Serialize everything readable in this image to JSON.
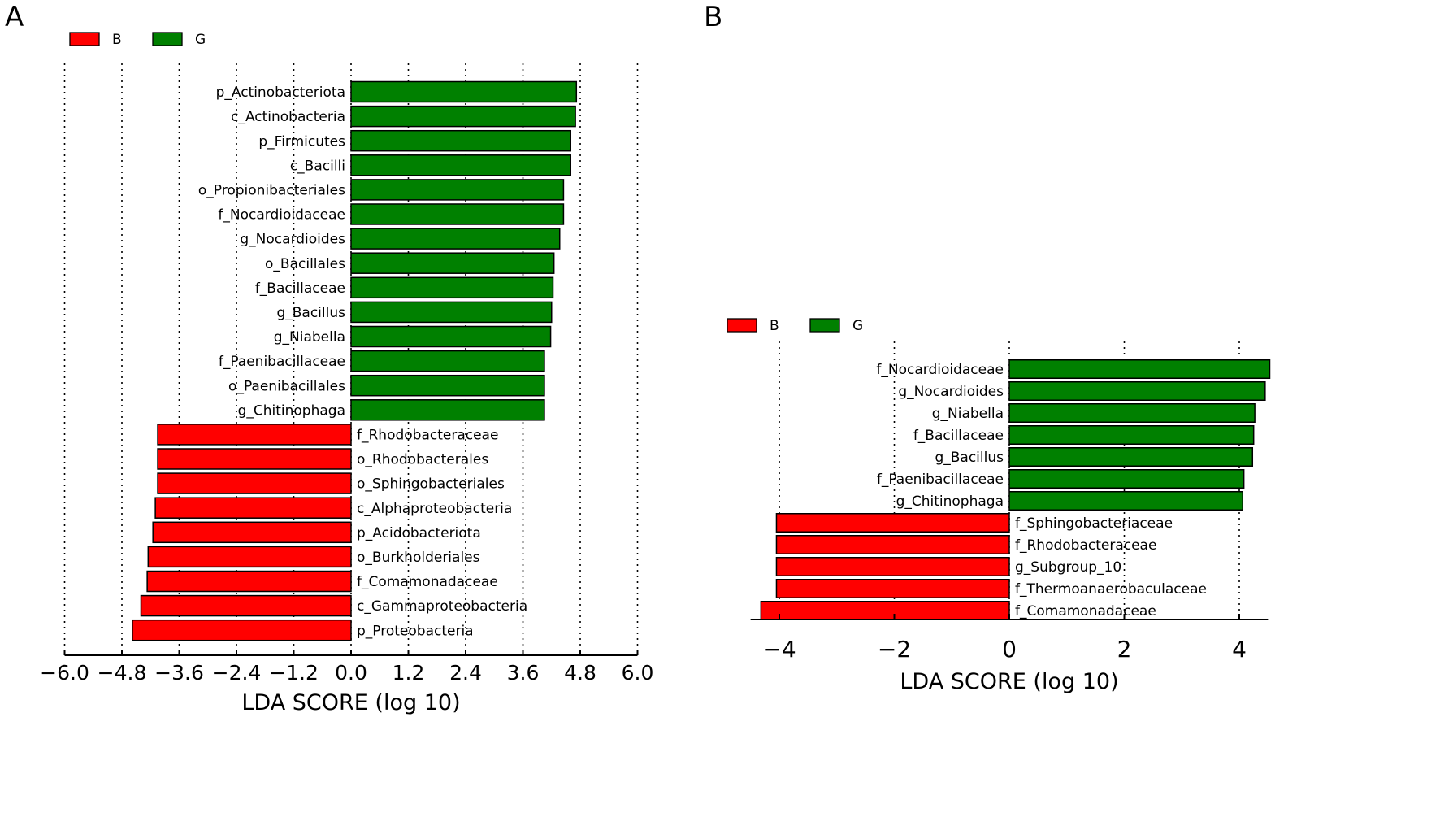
{
  "panels": [
    {
      "letter": "A"
    },
    {
      "letter": "B"
    }
  ],
  "colors": {
    "B": "#ff0000",
    "G": "#008000"
  },
  "chart_data": [
    {
      "type": "bar",
      "orientation": "horizontal",
      "panel": "A",
      "legend": [
        {
          "name": "B",
          "color": "#ff0000"
        },
        {
          "name": "G",
          "color": "#008000"
        }
      ],
      "legend_position": "top-left",
      "xlabel": "LDA SCORE (log 10)",
      "xlim": [
        -6.0,
        6.0
      ],
      "xticks": [
        -6.0,
        -4.8,
        -3.6,
        -2.4,
        -1.2,
        0.0,
        1.2,
        2.4,
        3.6,
        4.8,
        6.0
      ],
      "xtick_labels": [
        "−6.0",
        "−4.8",
        "−3.6",
        "−2.4",
        "−1.2",
        "0.0",
        "1.2",
        "2.4",
        "3.6",
        "4.8",
        "6.0"
      ],
      "grid": "vertical dotted",
      "bars": [
        {
          "label": "p_Actinobacteriota",
          "value": 4.72,
          "group": "G"
        },
        {
          "label": "c_Actinobacteria",
          "value": 4.7,
          "group": "G"
        },
        {
          "label": "p_Firmicutes",
          "value": 4.6,
          "group": "G"
        },
        {
          "label": "c_Bacilli",
          "value": 4.6,
          "group": "G"
        },
        {
          "label": "o_Propionibacteriales",
          "value": 4.45,
          "group": "G"
        },
        {
          "label": "f_Nocardioidaceae",
          "value": 4.45,
          "group": "G"
        },
        {
          "label": "g_Nocardioides",
          "value": 4.37,
          "group": "G"
        },
        {
          "label": "o_Bacillales",
          "value": 4.25,
          "group": "G"
        },
        {
          "label": "f_Bacillaceae",
          "value": 4.23,
          "group": "G"
        },
        {
          "label": "g_Bacillus",
          "value": 4.2,
          "group": "G"
        },
        {
          "label": "g_Niabella",
          "value": 4.18,
          "group": "G"
        },
        {
          "label": "f_Paenibacillaceae",
          "value": 4.05,
          "group": "G"
        },
        {
          "label": "o_Paenibacillales",
          "value": 4.05,
          "group": "G"
        },
        {
          "label": "g_Chitinophaga",
          "value": 4.05,
          "group": "G"
        },
        {
          "label": "f_Rhodobacteraceae",
          "value": -4.05,
          "group": "B"
        },
        {
          "label": "o_Rhodobacterales",
          "value": -4.05,
          "group": "B"
        },
        {
          "label": "o_Sphingobacteriales",
          "value": -4.05,
          "group": "B"
        },
        {
          "label": "c_Alphaproteobacteria",
          "value": -4.1,
          "group": "B"
        },
        {
          "label": "p_Acidobacteriota",
          "value": -4.15,
          "group": "B"
        },
        {
          "label": "o_Burkholderiales",
          "value": -4.25,
          "group": "B"
        },
        {
          "label": "f_Comamonadaceae",
          "value": -4.27,
          "group": "B"
        },
        {
          "label": "c_Gammaproteobacteria",
          "value": -4.4,
          "group": "B"
        },
        {
          "label": "p_Proteobacteria",
          "value": -4.58,
          "group": "B"
        }
      ]
    },
    {
      "type": "bar",
      "orientation": "horizontal",
      "panel": "B",
      "legend": [
        {
          "name": "B",
          "color": "#ff0000"
        },
        {
          "name": "G",
          "color": "#008000"
        }
      ],
      "legend_position": "top-left",
      "xlabel": "LDA SCORE (log 10)",
      "xlim": [
        -4.5,
        4.5
      ],
      "xticks": [
        -4,
        -2,
        0,
        2,
        4
      ],
      "xtick_labels": [
        "−4",
        "−2",
        "0",
        "2",
        "4"
      ],
      "grid": "vertical dotted",
      "bars": [
        {
          "label": "f_Nocardioidaceae",
          "value": 4.53,
          "group": "G"
        },
        {
          "label": "g_Nocardioides",
          "value": 4.45,
          "group": "G"
        },
        {
          "label": "g_Niabella",
          "value": 4.27,
          "group": "G"
        },
        {
          "label": "f_Bacillaceae",
          "value": 4.25,
          "group": "G"
        },
        {
          "label": "g_Bacillus",
          "value": 4.23,
          "group": "G"
        },
        {
          "label": "f_Paenibacillaceae",
          "value": 4.08,
          "group": "G"
        },
        {
          "label": "g_Chitinophaga",
          "value": 4.06,
          "group": "G"
        },
        {
          "label": "f_Sphingobacteriaceae",
          "value": -4.05,
          "group": "B"
        },
        {
          "label": "f_Rhodobacteraceae",
          "value": -4.05,
          "group": "B"
        },
        {
          "label": "g_Subgroup_10",
          "value": -4.05,
          "group": "B"
        },
        {
          "label": "f_Thermoanaerobaculaceae",
          "value": -4.05,
          "group": "B"
        },
        {
          "label": "f_Comamonadaceae",
          "value": -4.32,
          "group": "B"
        }
      ]
    }
  ]
}
